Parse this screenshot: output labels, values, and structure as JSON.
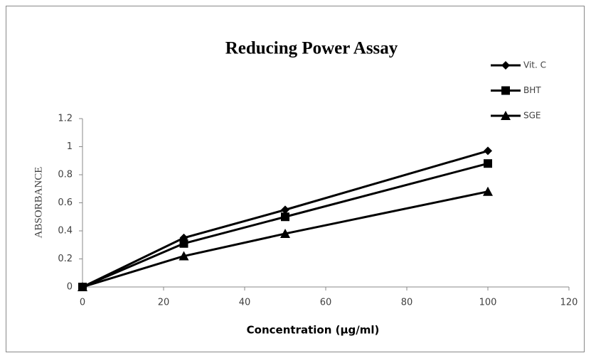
{
  "chart_data": {
    "type": "line",
    "title": "Reducing Power Assay",
    "xlabel": "Concentration (µg/ml)",
    "ylabel": "ABSORBANCE",
    "x": [
      0,
      25,
      50,
      100
    ],
    "series": [
      {
        "name": "Vit. C",
        "color": "#000000",
        "marker": "diamond",
        "values": [
          0,
          0.35,
          0.55,
          0.97
        ]
      },
      {
        "name": "BHT",
        "color": "#000000",
        "marker": "square",
        "values": [
          0,
          0.31,
          0.5,
          0.88
        ]
      },
      {
        "name": "SGE",
        "color": "#000000",
        "marker": "triangle",
        "values": [
          0,
          0.22,
          0.38,
          0.68
        ]
      }
    ],
    "xlim": [
      0,
      120
    ],
    "xticks": [
      0,
      20,
      40,
      60,
      80,
      100,
      120
    ],
    "ylim": [
      0,
      1.2
    ],
    "yticks": [
      0,
      0.2,
      0.4,
      0.6,
      0.8,
      1,
      1.2
    ],
    "grid": false,
    "legend": "upper right"
  }
}
